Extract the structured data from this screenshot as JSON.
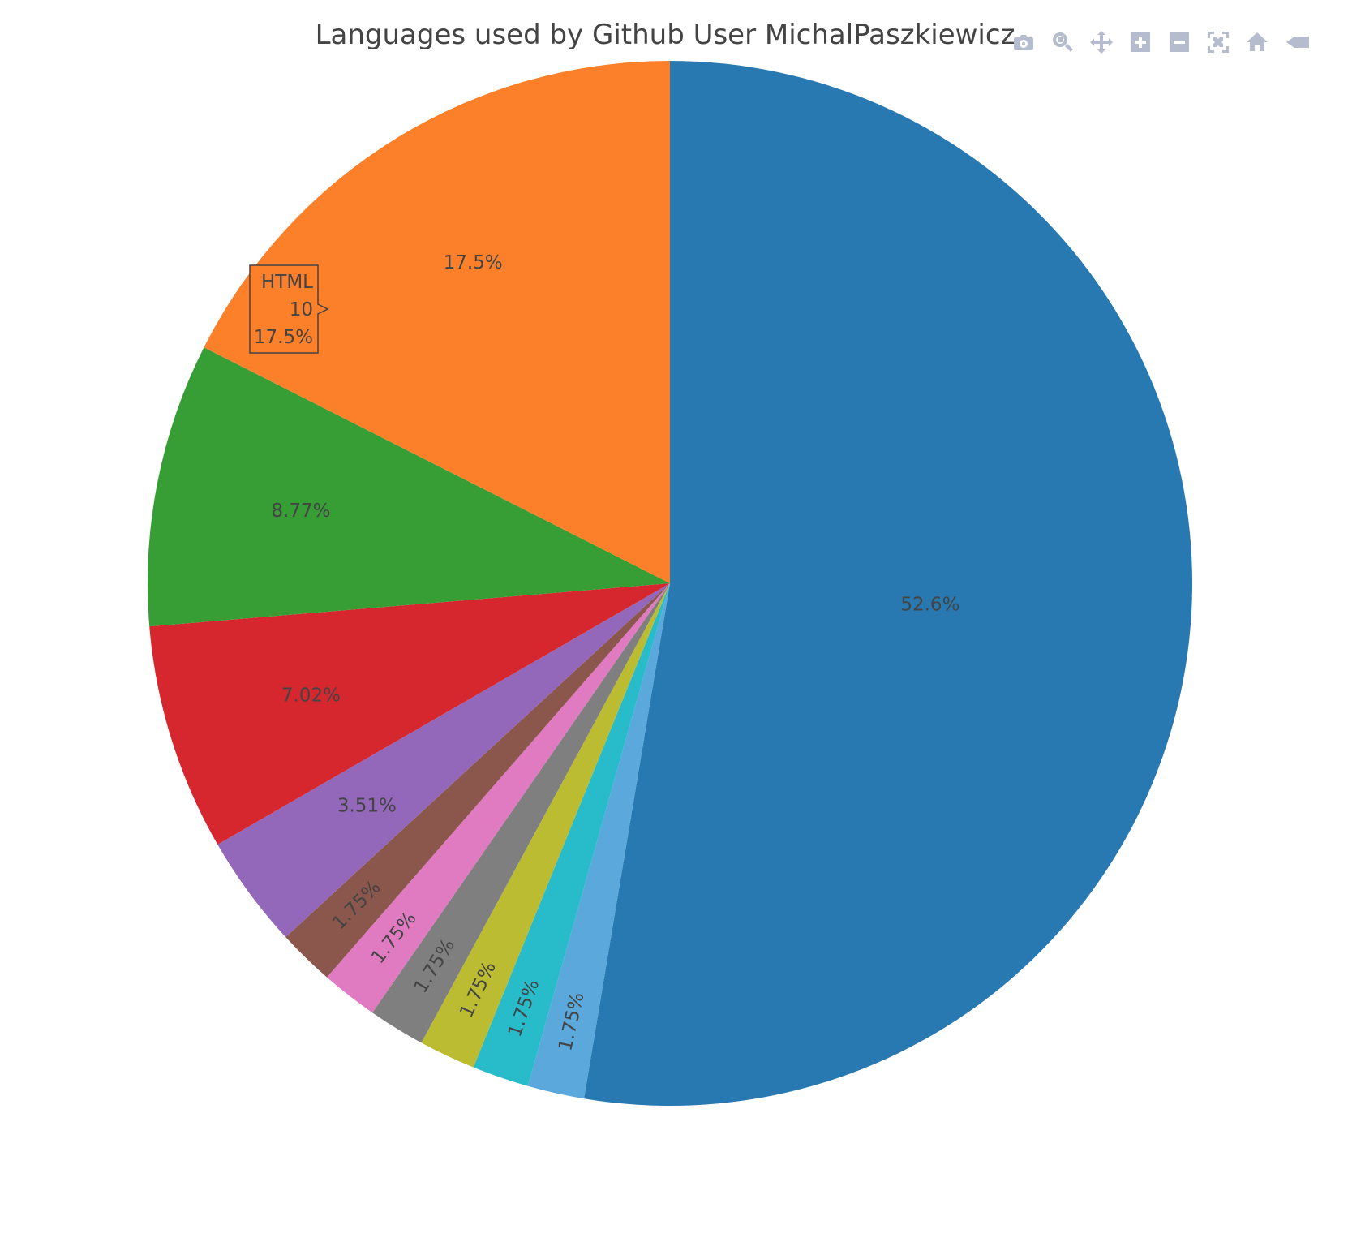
{
  "chart_data": {
    "type": "pie",
    "title": "Languages used by Github User MichalPaszkiewicz",
    "slices": [
      {
        "label": "",
        "value": 30,
        "percent_label": "52.6%",
        "color": "#2878b1"
      },
      {
        "label": "",
        "value": 1,
        "percent_label": "1.75%",
        "color": "#5ba8dd"
      },
      {
        "label": "",
        "value": 1,
        "percent_label": "1.75%",
        "color": "#28bccb"
      },
      {
        "label": "",
        "value": 1,
        "percent_label": "1.75%",
        "color": "#bcbc33"
      },
      {
        "label": "",
        "value": 1,
        "percent_label": "1.75%",
        "color": "#7f7f7f"
      },
      {
        "label": "",
        "value": 1,
        "percent_label": "1.75%",
        "color": "#e07bc2"
      },
      {
        "label": "",
        "value": 1,
        "percent_label": "1.75%",
        "color": "#8b564c"
      },
      {
        "label": "",
        "value": 2,
        "percent_label": "3.51%",
        "color": "#9367b9"
      },
      {
        "label": "",
        "value": 4,
        "percent_label": "7.02%",
        "color": "#d6272f"
      },
      {
        "label": "",
        "value": 5,
        "percent_label": "8.77%",
        "color": "#369e35"
      },
      {
        "label": "HTML",
        "value": 10,
        "percent_label": "17.5%",
        "color": "#fc7f29"
      }
    ],
    "hover": {
      "label": "HTML",
      "value": "10",
      "percent": "17.5%"
    }
  },
  "modebar": {
    "buttons": [
      {
        "name": "camera-icon"
      },
      {
        "name": "zoom-icon"
      },
      {
        "name": "pan-icon"
      },
      {
        "name": "zoom-in-icon"
      },
      {
        "name": "zoom-out-icon"
      },
      {
        "name": "autoscale-icon"
      },
      {
        "name": "reset-axes-icon"
      },
      {
        "name": "spike-lines-icon"
      }
    ]
  }
}
